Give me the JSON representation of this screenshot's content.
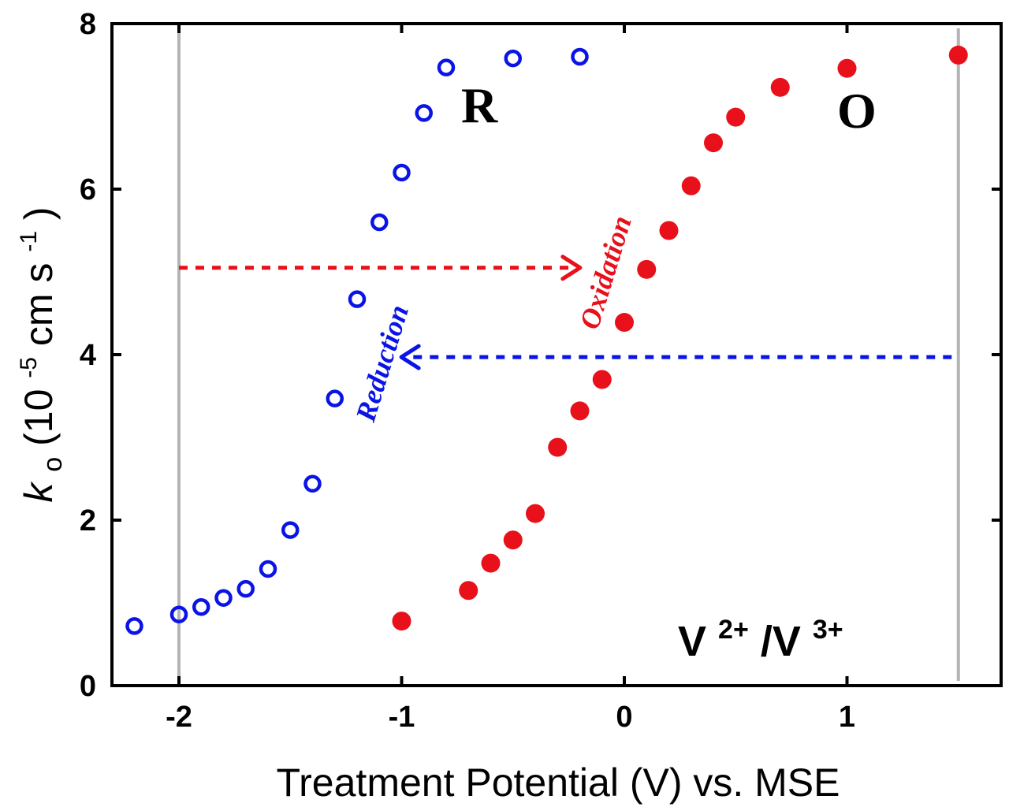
{
  "chart_data": {
    "type": "scatter",
    "xlabel": "Treatment Potential (V) vs. MSE",
    "ylabel": {
      "symbol": "k",
      "subscript": "o",
      "open": "(10",
      "exp1": "-5",
      "mid": " cm s",
      "exp2": "-1",
      "close": ")"
    },
    "xlim": [
      -2.3,
      1.7
    ],
    "ylim": [
      0,
      8
    ],
    "x_ticks": [
      -2,
      -1,
      0,
      1
    ],
    "x_tick_labels": [
      "-2",
      "-1",
      "0",
      "1"
    ],
    "y_ticks": [
      0,
      2,
      4,
      6,
      8
    ],
    "y_tick_labels": [
      "0",
      "2",
      "4",
      "6",
      "8"
    ],
    "grid": false,
    "legend": "none",
    "series": [
      {
        "marker": "open-circle",
        "color": "#0a14e6",
        "points": [
          [
            -2.2,
            0.72
          ],
          [
            -2.0,
            0.86
          ],
          [
            -1.9,
            0.95
          ],
          [
            -1.8,
            1.06
          ],
          [
            -1.7,
            1.17
          ],
          [
            -1.6,
            1.41
          ],
          [
            -1.5,
            1.88
          ],
          [
            -1.4,
            2.44
          ],
          [
            -1.3,
            3.47
          ],
          [
            -1.2,
            4.67
          ],
          [
            -1.1,
            5.6
          ],
          [
            -1.0,
            6.2
          ],
          [
            -0.9,
            6.92
          ],
          [
            -0.8,
            7.47
          ],
          [
            -0.5,
            7.58
          ],
          [
            -0.2,
            7.6
          ]
        ]
      },
      {
        "marker": "filled-circle",
        "color": "#e8101a",
        "points": [
          [
            -1.0,
            0.78
          ],
          [
            -0.7,
            1.15
          ],
          [
            -0.6,
            1.48
          ],
          [
            -0.5,
            1.76
          ],
          [
            -0.4,
            2.08
          ],
          [
            -0.3,
            2.88
          ],
          [
            -0.2,
            3.32
          ],
          [
            -0.1,
            3.7
          ],
          [
            0.0,
            4.39
          ],
          [
            0.1,
            5.03
          ],
          [
            0.2,
            5.5
          ],
          [
            0.3,
            6.04
          ],
          [
            0.4,
            6.56
          ],
          [
            0.5,
            6.87
          ],
          [
            0.7,
            7.23
          ],
          [
            1.0,
            7.46
          ],
          [
            1.5,
            7.62
          ]
        ]
      }
    ],
    "vertical_lines": {
      "x": [
        -2.0,
        1.5
      ],
      "color": "#b4b4b4"
    },
    "arrows": [
      {
        "name": "oxidation",
        "color": "#e8101a",
        "y": 5.05,
        "x_from": -2.0,
        "x_to": -0.22,
        "direction": "right",
        "label": "Oxidation"
      },
      {
        "name": "reduction",
        "color": "#0a14e6",
        "y": 3.97,
        "x_from": 1.47,
        "x_to": -0.98,
        "direction": "left",
        "label": "Reduction"
      }
    ],
    "annotations": {
      "region_r": "R",
      "region_o": "O",
      "couple": {
        "a": "V",
        "a_sup": "2+",
        "sep": "/V",
        "b_sup": "3+"
      }
    }
  }
}
